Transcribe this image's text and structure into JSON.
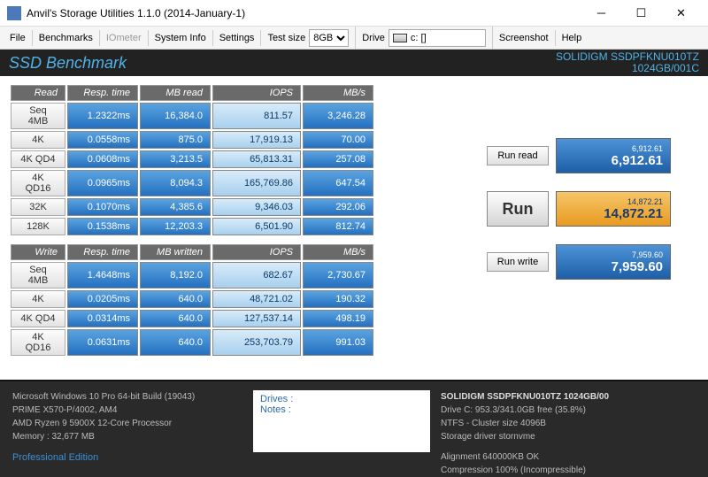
{
  "window": {
    "title": "Anvil's Storage Utilities 1.1.0 (2014-January-1)"
  },
  "menu": {
    "file": "File",
    "benchmarks": "Benchmarks",
    "iometer": "IOmeter",
    "sysinfo": "System Info",
    "settings": "Settings",
    "testsize_label": "Test size",
    "testsize_value": "8GB",
    "drive_label": "Drive",
    "drive_value": "c: []",
    "screenshot": "Screenshot",
    "help": "Help"
  },
  "header": {
    "ssd": "SSD Benchmark",
    "device_line1": "SOLIDIGM SSDPFKNU010TZ",
    "device_line2": "1024GB/001C"
  },
  "read": {
    "section": "Read",
    "cols": {
      "resp": "Resp. time",
      "mb": "MB read",
      "iops": "IOPS",
      "mbs": "MB/s"
    },
    "rows": [
      {
        "lbl": "Seq 4MB",
        "resp": "1.2322ms",
        "mb": "16,384.0",
        "iops": "811.57",
        "mbs": "3,246.28"
      },
      {
        "lbl": "4K",
        "resp": "0.0558ms",
        "mb": "875.0",
        "iops": "17,919.13",
        "mbs": "70.00"
      },
      {
        "lbl": "4K QD4",
        "resp": "0.0608ms",
        "mb": "3,213.5",
        "iops": "65,813.31",
        "mbs": "257.08"
      },
      {
        "lbl": "4K QD16",
        "resp": "0.0965ms",
        "mb": "8,094.3",
        "iops": "165,769.86",
        "mbs": "647.54"
      },
      {
        "lbl": "32K",
        "resp": "0.1070ms",
        "mb": "4,385.6",
        "iops": "9,346.03",
        "mbs": "292.06"
      },
      {
        "lbl": "128K",
        "resp": "0.1538ms",
        "mb": "12,203.3",
        "iops": "6,501.90",
        "mbs": "812.74"
      }
    ]
  },
  "write": {
    "section": "Write",
    "cols": {
      "resp": "Resp. time",
      "mb": "MB written",
      "iops": "IOPS",
      "mbs": "MB/s"
    },
    "rows": [
      {
        "lbl": "Seq 4MB",
        "resp": "1.4648ms",
        "mb": "8,192.0",
        "iops": "682.67",
        "mbs": "2,730.67"
      },
      {
        "lbl": "4K",
        "resp": "0.0205ms",
        "mb": "640.0",
        "iops": "48,721.02",
        "mbs": "190.32"
      },
      {
        "lbl": "4K QD4",
        "resp": "0.0314ms",
        "mb": "640.0",
        "iops": "127,537.14",
        "mbs": "498.19"
      },
      {
        "lbl": "4K QD16",
        "resp": "0.0631ms",
        "mb": "640.0",
        "iops": "253,703.79",
        "mbs": "991.03"
      }
    ]
  },
  "buttons": {
    "runread": "Run read",
    "runwrite": "Run write",
    "run": "Run"
  },
  "scores": {
    "read_small": "6,912.61",
    "read_big": "6,912.61",
    "total_small": "14,872.21",
    "total_big": "14,872.21",
    "write_small": "7,959.60",
    "write_big": "7,959.60"
  },
  "footer": {
    "sys": [
      "Microsoft Windows 10 Pro 64-bit Build (19043)",
      "PRIME X570-P/4002, AM4",
      "AMD Ryzen 9 5900X 12-Core Processor",
      "Memory : 32,677 MB"
    ],
    "pro": "Professional Edition",
    "notes_drives": "Drives :",
    "notes_notes": "Notes :",
    "disk": [
      "SOLIDIGM SSDPFKNU010TZ 1024GB/00",
      "Drive C: 953.3/341.0GB free (35.8%)",
      "NTFS - Cluster size 4096B",
      "Storage driver  stornvme",
      "",
      "Alignment 640000KB OK",
      "Compression 100% (Incompressible)"
    ]
  }
}
